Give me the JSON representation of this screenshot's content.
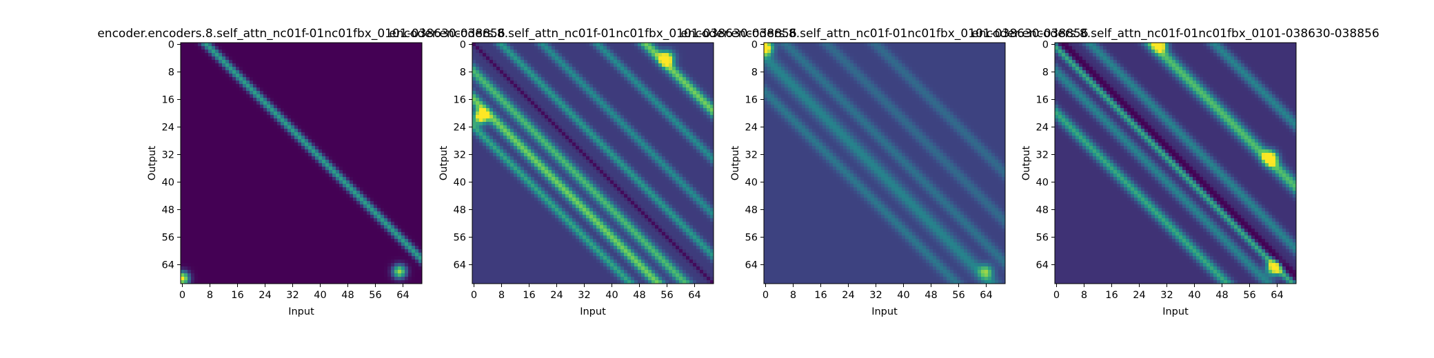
{
  "chart_data": [
    {
      "type": "heatmap",
      "title": "encoder.encoders.8.self_attn_nc01f-01nc01fbx_0101-038630-038856",
      "xlabel": "Input",
      "ylabel": "Output",
      "x_ticks": [
        0,
        8,
        16,
        24,
        32,
        40,
        48,
        56,
        64
      ],
      "y_ticks": [
        0,
        8,
        16,
        24,
        32,
        40,
        48,
        56,
        64
      ],
      "n_rows": 70,
      "n_cols": 70,
      "colormap": "viridis",
      "pattern": {
        "diagonals": [
          {
            "offset": 7,
            "width": 1.2,
            "strength": 0.55
          }
        ],
        "hotspots": [
          {
            "row": 68,
            "col": 0,
            "strength": 1.0
          },
          {
            "row": 66,
            "col": 63,
            "strength": 0.85
          }
        ],
        "base": 0.0
      }
    },
    {
      "type": "heatmap",
      "title": "encoder.encoders.8.self_attn_nc01f-01nc01fbx_0101-038630-038856",
      "xlabel": "Input",
      "ylabel": "Output",
      "x_ticks": [
        0,
        8,
        16,
        24,
        32,
        40,
        48,
        56,
        64
      ],
      "y_ticks": [
        0,
        8,
        16,
        24,
        32,
        40,
        48,
        56,
        64
      ],
      "n_rows": 70,
      "n_cols": 70,
      "colormap": "viridis",
      "pattern": {
        "diagonals": [
          {
            "offset": 0,
            "width": 0.6,
            "strength": -0.15
          },
          {
            "offset": -8,
            "width": 1.5,
            "strength": 0.5
          },
          {
            "offset": -16,
            "width": 1.5,
            "strength": 0.6
          },
          {
            "offset": -24,
            "width": 1.3,
            "strength": 0.4
          },
          {
            "offset": 8,
            "width": 1.2,
            "strength": 0.35
          },
          {
            "offset": 20,
            "width": 1.2,
            "strength": 0.3
          },
          {
            "offset": 36,
            "width": 1.2,
            "strength": 0.3
          },
          {
            "offset": 50,
            "width": 1.5,
            "strength": 0.6
          }
        ],
        "hotspots": [
          {
            "row": 21,
            "col": 2,
            "strength": 1.0
          },
          {
            "row": 4,
            "col": 56,
            "strength": 0.9
          }
        ],
        "base": 0.18
      }
    },
    {
      "type": "heatmap",
      "title": "encoder.encoders.8.self_attn_nc01f-01nc01fbx_0101-038630-038856",
      "xlabel": "Input",
      "ylabel": "Output",
      "x_ticks": [
        0,
        8,
        16,
        24,
        32,
        40,
        48,
        56,
        64
      ],
      "y_ticks": [
        0,
        8,
        16,
        24,
        32,
        40,
        48,
        56,
        64
      ],
      "n_rows": 70,
      "n_cols": 70,
      "colormap": "viridis",
      "pattern": {
        "diagonals": [
          {
            "offset": -4,
            "width": 2.0,
            "strength": 0.25
          },
          {
            "offset": -14,
            "width": 1.5,
            "strength": 0.2
          },
          {
            "offset": 6,
            "width": 1.5,
            "strength": 0.18
          },
          {
            "offset": 18,
            "width": 1.5,
            "strength": 0.15
          },
          {
            "offset": 32,
            "width": 1.5,
            "strength": 0.15
          }
        ],
        "hotspots": [
          {
            "row": 1,
            "col": 0,
            "strength": 1.0
          },
          {
            "row": 66,
            "col": 64,
            "strength": 0.5
          }
        ],
        "base": 0.2
      }
    },
    {
      "type": "heatmap",
      "title": "encoder.encoders.8.self_attn_nc01f-01nc01fbx_0101-038630-038856",
      "xlabel": "Input",
      "ylabel": "Output",
      "x_ticks": [
        0,
        8,
        16,
        24,
        32,
        40,
        48,
        56,
        64
      ],
      "y_ticks": [
        0,
        8,
        16,
        24,
        32,
        40,
        48,
        56,
        64
      ],
      "n_rows": 70,
      "n_cols": 70,
      "colormap": "viridis",
      "pattern": {
        "diagonals": [
          {
            "offset": 2,
            "width": 1.0,
            "strength": -0.2
          },
          {
            "offset": -1,
            "width": 1.0,
            "strength": 0.45
          },
          {
            "offset": -8,
            "width": 1.5,
            "strength": 0.3
          },
          {
            "offset": -20,
            "width": 1.5,
            "strength": 0.45
          },
          {
            "offset": 10,
            "width": 1.5,
            "strength": 0.3
          },
          {
            "offset": 28,
            "width": 1.8,
            "strength": 0.55
          },
          {
            "offset": 46,
            "width": 1.5,
            "strength": 0.3
          }
        ],
        "hotspots": [
          {
            "row": 33,
            "col": 62,
            "strength": 1.0
          },
          {
            "row": 0,
            "col": 30,
            "strength": 0.85
          },
          {
            "row": 65,
            "col": 63,
            "strength": 0.9
          }
        ],
        "base": 0.15
      }
    }
  ]
}
